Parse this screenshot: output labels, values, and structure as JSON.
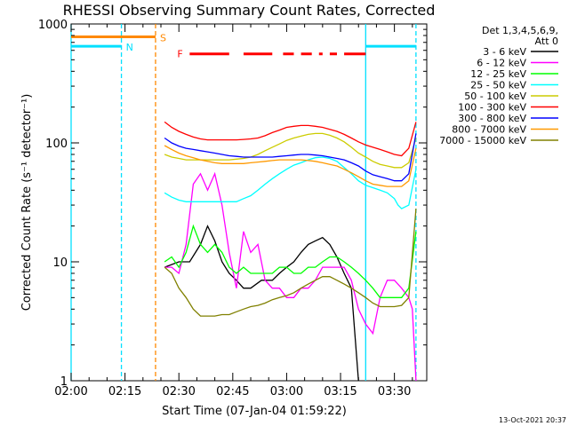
{
  "chart_data": {
    "type": "line",
    "title": "RHESSI Observing Summary Count Rates, Corrected",
    "xlabel": "Start Time (07-Jan-04 01:59:22)",
    "ylabel": "Corrected Count Rate (s⁻¹ detector⁻¹)",
    "x_unit": "minutes after 02:00",
    "xlim": [
      0,
      99
    ],
    "ylim": [
      1,
      1000
    ],
    "yscale": "log",
    "x_ticks": [
      {
        "t": 0,
        "label": "02:00"
      },
      {
        "t": 15,
        "label": "02:15"
      },
      {
        "t": 30,
        "label": "02:30"
      },
      {
        "t": 45,
        "label": "02:45"
      },
      {
        "t": 60,
        "label": "03:00"
      },
      {
        "t": 75,
        "label": "03:15"
      },
      {
        "t": 90,
        "label": "03:30"
      }
    ],
    "y_ticks": [
      {
        "v": 1,
        "label": "1"
      },
      {
        "v": 10,
        "label": "10"
      },
      {
        "v": 100,
        "label": "100"
      },
      {
        "v": 1000,
        "label": "1000"
      }
    ],
    "legend_header": [
      "Det 1,3,4,5,6,9,",
      "Att 0"
    ],
    "legend_position": "right",
    "timestamp": "13-Oct-2021 20:37",
    "series": [
      {
        "name": "3 - 6 keV",
        "color": "#000000",
        "x": [
          26,
          30,
          33,
          36,
          38,
          40,
          42,
          44,
          46,
          48,
          50,
          53,
          56,
          58,
          60,
          62,
          64,
          66,
          68,
          70,
          72,
          74,
          76,
          78,
          80
        ],
        "y": [
          9,
          10,
          10,
          14,
          20,
          15,
          10,
          8,
          7,
          6,
          6,
          7,
          7,
          8,
          9,
          10,
          12,
          14,
          15,
          16,
          14,
          11,
          8,
          6,
          1
        ]
      },
      {
        "name": "6 - 12 keV",
        "color": "#ff00ff",
        "x": [
          26,
          28,
          30,
          32,
          34,
          36,
          38,
          40,
          42,
          44,
          46,
          48,
          50,
          52,
          54,
          56,
          58,
          60,
          62,
          64,
          66,
          68,
          70,
          72,
          74,
          76,
          78,
          80,
          82,
          84,
          86,
          88,
          90,
          92,
          94,
          95,
          96
        ],
        "y": [
          9,
          9,
          8,
          14,
          45,
          55,
          40,
          55,
          30,
          12,
          6,
          18,
          12,
          14,
          7,
          6,
          6,
          5,
          5,
          6,
          6,
          7,
          9,
          9,
          9,
          9,
          7,
          4,
          3,
          2.5,
          5,
          7,
          7,
          6,
          5,
          4,
          1
        ]
      },
      {
        "name": "12 - 25 keV",
        "color": "#00ff00",
        "x": [
          26,
          28,
          30,
          32,
          34,
          36,
          38,
          40,
          42,
          44,
          46,
          48,
          50,
          52,
          54,
          56,
          58,
          60,
          62,
          64,
          66,
          68,
          70,
          72,
          74,
          76,
          78,
          80,
          82,
          84,
          86,
          88,
          90,
          92,
          94,
          96
        ],
        "y": [
          10,
          11,
          9,
          12,
          20,
          14,
          12,
          14,
          12,
          9,
          8,
          9,
          8,
          8,
          8,
          8,
          9,
          9,
          8,
          8,
          9,
          9,
          10,
          11,
          11,
          10,
          9,
          8,
          7,
          6,
          5,
          5,
          5,
          5,
          6,
          18
        ]
      },
      {
        "name": "25 - 50 keV",
        "color": "#00ffff",
        "x": [
          26,
          28,
          30,
          32,
          34,
          36,
          38,
          40,
          42,
          44,
          46,
          48,
          50,
          52,
          54,
          56,
          58,
          60,
          62,
          64,
          66,
          68,
          70,
          72,
          74,
          76,
          78,
          80,
          82,
          84,
          86,
          88,
          90,
          91,
          92,
          94,
          96
        ],
        "y": [
          38,
          35,
          33,
          32,
          32,
          32,
          32,
          32,
          32,
          32,
          32,
          34,
          36,
          40,
          45,
          50,
          55,
          60,
          65,
          68,
          72,
          75,
          76,
          74,
          70,
          62,
          55,
          48,
          44,
          42,
          40,
          38,
          34,
          30,
          28,
          30,
          60
        ]
      },
      {
        "name": "50 - 100 keV",
        "color": "#cccc00",
        "x": [
          26,
          28,
          30,
          32,
          34,
          36,
          38,
          40,
          42,
          44,
          46,
          48,
          50,
          52,
          54,
          56,
          58,
          60,
          62,
          64,
          66,
          68,
          70,
          72,
          74,
          76,
          78,
          80,
          82,
          84,
          86,
          88,
          90,
          92,
          94,
          96
        ],
        "y": [
          80,
          76,
          74,
          72,
          72,
          72,
          72,
          72,
          72,
          72,
          73,
          74,
          76,
          80,
          86,
          92,
          98,
          105,
          110,
          114,
          118,
          120,
          120,
          116,
          110,
          102,
          92,
          82,
          76,
          70,
          66,
          64,
          62,
          62,
          68,
          110
        ]
      },
      {
        "name": "100 - 300 keV",
        "color": "#ff0000",
        "x": [
          26,
          28,
          30,
          32,
          34,
          36,
          38,
          40,
          42,
          44,
          46,
          48,
          50,
          52,
          54,
          56,
          58,
          60,
          62,
          64,
          66,
          68,
          70,
          72,
          74,
          76,
          78,
          80,
          82,
          84,
          86,
          88,
          90,
          92,
          94,
          96
        ],
        "y": [
          150,
          135,
          125,
          118,
          112,
          108,
          106,
          106,
          106,
          106,
          106,
          107,
          108,
          110,
          115,
          122,
          128,
          135,
          138,
          140,
          140,
          138,
          135,
          130,
          125,
          118,
          110,
          102,
          96,
          92,
          88,
          84,
          80,
          78,
          90,
          150
        ]
      },
      {
        "name": "300 - 800 keV",
        "color": "#0000ff",
        "x": [
          26,
          28,
          30,
          32,
          34,
          36,
          38,
          40,
          42,
          44,
          46,
          48,
          50,
          52,
          54,
          56,
          58,
          60,
          62,
          64,
          66,
          68,
          70,
          72,
          74,
          76,
          78,
          80,
          82,
          84,
          86,
          88,
          90,
          92,
          94,
          96
        ],
        "y": [
          110,
          100,
          94,
          90,
          88,
          86,
          84,
          82,
          80,
          78,
          77,
          76,
          76,
          76,
          76,
          76,
          77,
          78,
          79,
          80,
          80,
          79,
          78,
          76,
          74,
          72,
          68,
          64,
          58,
          54,
          52,
          50,
          48,
          48,
          55,
          120
        ]
      },
      {
        "name": "800 - 7000 keV",
        "color": "#ff9900",
        "x": [
          26,
          28,
          30,
          32,
          34,
          36,
          38,
          40,
          42,
          44,
          46,
          48,
          50,
          52,
          54,
          56,
          58,
          60,
          62,
          64,
          66,
          68,
          70,
          72,
          74,
          76,
          78,
          80,
          82,
          84,
          86,
          88,
          90,
          92,
          94,
          96
        ],
        "y": [
          95,
          88,
          82,
          78,
          75,
          72,
          70,
          68,
          67,
          67,
          67,
          67,
          68,
          69,
          70,
          71,
          72,
          72,
          72,
          72,
          71,
          70,
          68,
          66,
          64,
          60,
          56,
          52,
          48,
          45,
          44,
          43,
          43,
          43,
          48,
          90
        ]
      },
      {
        "name": "7000 - 15000 keV",
        "color": "#808000",
        "x": [
          26,
          28,
          30,
          32,
          34,
          36,
          38,
          40,
          42,
          44,
          46,
          48,
          50,
          52,
          54,
          56,
          58,
          60,
          62,
          64,
          66,
          68,
          70,
          72,
          74,
          76,
          78,
          80,
          82,
          84,
          86,
          88,
          90,
          92,
          94,
          96
        ],
        "y": [
          9,
          8,
          6,
          5,
          4,
          3.5,
          3.5,
          3.5,
          3.6,
          3.6,
          3.8,
          4,
          4.2,
          4.3,
          4.5,
          4.8,
          5,
          5.2,
          5.5,
          6,
          6.5,
          7,
          7.5,
          7.5,
          7,
          6.5,
          6,
          5.5,
          5,
          4.5,
          4.2,
          4.2,
          4.2,
          4.3,
          5,
          28
        ]
      }
    ],
    "annotations": [
      {
        "label": "N",
        "color": "#00e0ff",
        "x0": 0,
        "x1": 14,
        "y": 650
      },
      {
        "label": "S",
        "color": "#ff8800",
        "x0": 0,
        "x1": 23.5,
        "y": 780
      },
      {
        "label": "F",
        "color": "#ff0000",
        "segments": [
          [
            33,
            44
          ],
          [
            48,
            56
          ],
          [
            59,
            62
          ],
          [
            64,
            67
          ],
          [
            69,
            70
          ],
          [
            72,
            74
          ],
          [
            76,
            82
          ]
        ],
        "y": 560
      },
      {
        "label": "",
        "color": "#00e0ff",
        "x0": 82,
        "x1": 96,
        "y": 650
      }
    ],
    "vertical_lines": [
      {
        "x": 0,
        "color": "#00e0ff",
        "style": "solid"
      },
      {
        "x": 14,
        "color": "#00e0ff",
        "style": "dashed"
      },
      {
        "x": 23.5,
        "color": "#ff8800",
        "style": "dashed"
      },
      {
        "x": 82,
        "color": "#00e0ff",
        "style": "solid"
      },
      {
        "x": 96,
        "color": "#00e0ff",
        "style": "dashed"
      }
    ]
  }
}
